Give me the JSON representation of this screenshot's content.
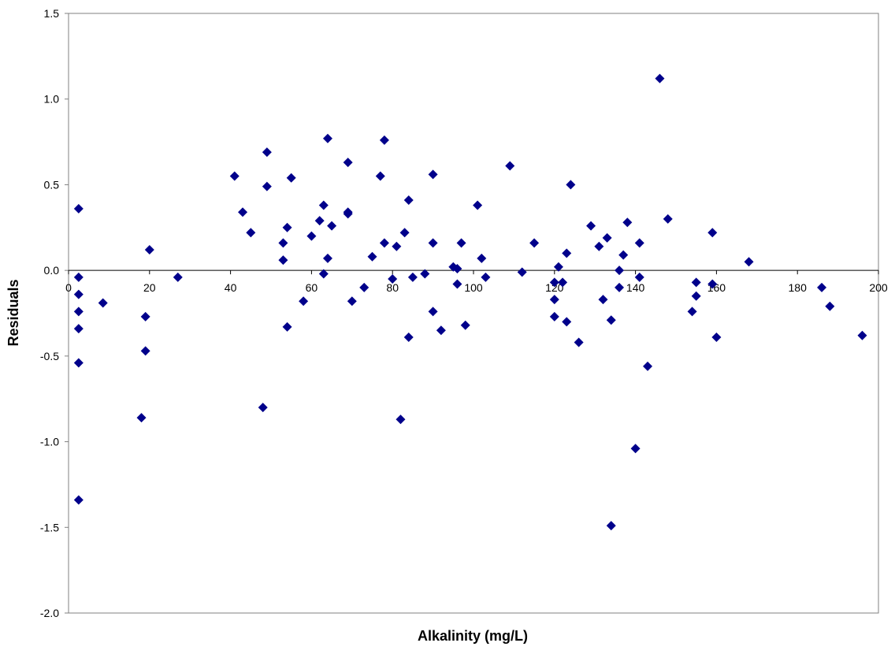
{
  "colors": {
    "marker": "#00008B",
    "axis": "#808080",
    "zero_line": "#000000",
    "background": "#FFFFFF"
  },
  "chart_data": {
    "type": "scatter",
    "xlabel": "Alkalinity (mg/L)",
    "ylabel": "Residuals",
    "xlim": [
      0,
      200
    ],
    "ylim": [
      -2.0,
      1.5
    ],
    "x_ticks": [
      0,
      20,
      40,
      60,
      80,
      100,
      120,
      140,
      160,
      180,
      200
    ],
    "y_ticks": [
      -2.0,
      -1.5,
      -1.0,
      -0.5,
      0.0,
      0.5,
      1.0,
      1.5
    ],
    "x_tick_labels": [
      "0",
      "20",
      "40",
      "60",
      "80",
      "100",
      "120",
      "140",
      "160",
      "180",
      "200"
    ],
    "y_tick_labels": [
      "-2.0",
      "-1.5",
      "-1.0",
      "-0.5",
      "0.0",
      "0.5",
      "1.0",
      "1.5"
    ],
    "grid": false,
    "legend": "none",
    "marker": "diamond",
    "points": [
      [
        2.5,
        0.36
      ],
      [
        2.5,
        -0.04
      ],
      [
        2.5,
        -0.14
      ],
      [
        2.5,
        -0.24
      ],
      [
        2.5,
        -0.34
      ],
      [
        2.5,
        -0.54
      ],
      [
        2.5,
        -1.34
      ],
      [
        8.5,
        -0.19
      ],
      [
        18,
        -0.86
      ],
      [
        19,
        -0.27
      ],
      [
        19,
        -0.47
      ],
      [
        20,
        0.12
      ],
      [
        27,
        -0.04
      ],
      [
        41,
        0.55
      ],
      [
        43,
        0.34
      ],
      [
        45,
        0.22
      ],
      [
        48,
        -0.8
      ],
      [
        49,
        0.69
      ],
      [
        49,
        0.49
      ],
      [
        53,
        0.16
      ],
      [
        53,
        0.06
      ],
      [
        54,
        0.25
      ],
      [
        54,
        -0.33
      ],
      [
        55,
        0.54
      ],
      [
        58,
        -0.18
      ],
      [
        60,
        0.2
      ],
      [
        62,
        0.29
      ],
      [
        63,
        0.38
      ],
      [
        63,
        -0.02
      ],
      [
        64,
        0.77
      ],
      [
        64,
        0.07
      ],
      [
        65,
        0.26
      ],
      [
        69,
        0.63
      ],
      [
        69,
        0.34
      ],
      [
        69,
        0.33
      ],
      [
        70,
        -0.18
      ],
      [
        73,
        -0.1
      ],
      [
        75,
        0.08
      ],
      [
        77,
        0.55
      ],
      [
        78,
        0.76
      ],
      [
        78,
        0.16
      ],
      [
        80,
        -0.05
      ],
      [
        81,
        0.14
      ],
      [
        82,
        -0.87
      ],
      [
        83,
        0.22
      ],
      [
        84,
        0.41
      ],
      [
        84,
        -0.39
      ],
      [
        85,
        -0.04
      ],
      [
        88,
        -0.02
      ],
      [
        90,
        0.56
      ],
      [
        90,
        0.16
      ],
      [
        90,
        -0.24
      ],
      [
        92,
        -0.35
      ],
      [
        95,
        0.02
      ],
      [
        96,
        0.01
      ],
      [
        96,
        -0.08
      ],
      [
        97,
        0.16
      ],
      [
        98,
        -0.32
      ],
      [
        101,
        0.38
      ],
      [
        102,
        0.07
      ],
      [
        103,
        -0.04
      ],
      [
        109,
        0.61
      ],
      [
        112,
        -0.01
      ],
      [
        115,
        0.16
      ],
      [
        120,
        -0.07
      ],
      [
        120,
        -0.17
      ],
      [
        120,
        -0.27
      ],
      [
        121,
        0.02
      ],
      [
        122,
        -0.07
      ],
      [
        123,
        0.1
      ],
      [
        123,
        -0.3
      ],
      [
        124,
        0.5
      ],
      [
        126,
        -0.42
      ],
      [
        129,
        0.26
      ],
      [
        131,
        0.14
      ],
      [
        132,
        -0.17
      ],
      [
        133,
        0.19
      ],
      [
        134,
        -0.29
      ],
      [
        134,
        -1.49
      ],
      [
        136,
        0.0
      ],
      [
        136,
        -0.1
      ],
      [
        137,
        0.09
      ],
      [
        138,
        0.28
      ],
      [
        140,
        -1.04
      ],
      [
        141,
        0.16
      ],
      [
        141,
        -0.04
      ],
      [
        143,
        -0.56
      ],
      [
        146,
        1.12
      ],
      [
        148,
        0.3
      ],
      [
        154,
        -0.24
      ],
      [
        155,
        -0.07
      ],
      [
        155,
        -0.15
      ],
      [
        159,
        0.22
      ],
      [
        159,
        -0.08
      ],
      [
        160,
        -0.39
      ],
      [
        168,
        0.05
      ],
      [
        186,
        -0.1
      ],
      [
        188,
        -0.21
      ],
      [
        196,
        -0.38
      ]
    ]
  }
}
